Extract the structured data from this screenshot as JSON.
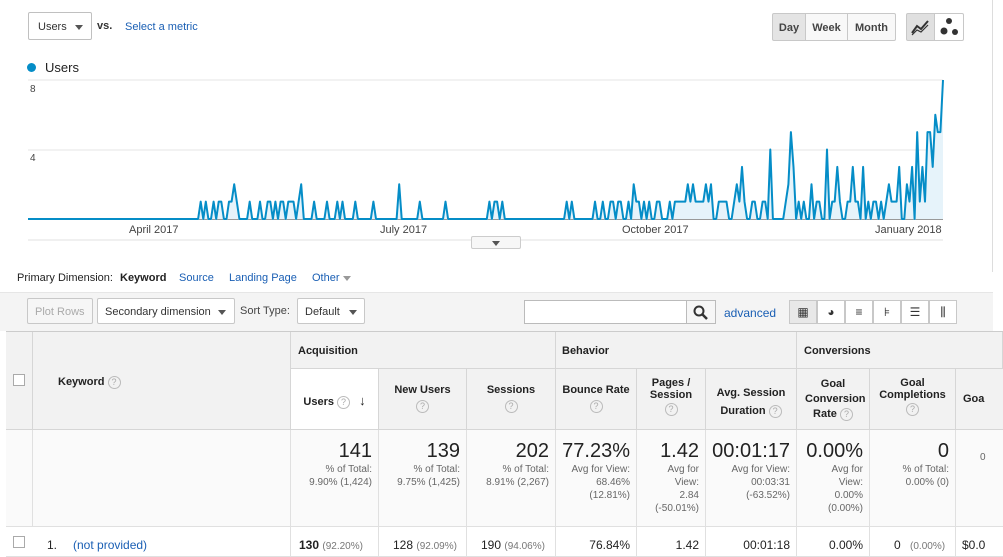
{
  "metric": {
    "selected": "Users",
    "vs": "vs.",
    "select_metric": "Select a metric"
  },
  "periods": [
    "Day",
    "Week",
    "Month"
  ],
  "chart_data": {
    "type": "line",
    "title": "",
    "series": [
      {
        "name": "Users",
        "color": "#058dc7",
        "values": [
          0,
          0,
          0,
          0,
          0,
          0,
          0,
          0,
          0,
          0,
          0,
          0,
          0,
          0,
          0,
          0,
          0,
          0,
          0,
          0,
          0,
          0,
          0,
          0,
          0,
          0,
          0,
          0,
          0,
          0,
          0,
          0,
          0,
          0,
          0,
          0,
          0,
          0,
          0,
          0,
          0,
          0,
          0,
          0,
          0,
          0,
          0,
          0,
          0,
          0,
          0,
          0,
          0,
          0,
          0,
          0,
          0,
          0,
          0,
          0,
          0,
          0,
          0,
          0,
          0,
          0,
          0,
          1,
          0,
          1,
          0,
          0,
          1,
          0,
          1,
          1,
          0,
          0,
          1,
          1,
          2,
          1,
          0,
          0,
          0,
          0,
          1,
          0,
          0,
          0,
          1,
          0,
          0,
          1,
          1,
          0,
          1,
          0,
          1,
          1,
          0,
          1,
          1,
          1,
          0,
          1,
          2,
          0,
          0,
          0,
          0,
          1,
          0,
          0,
          0,
          0,
          1,
          0,
          0,
          0,
          1,
          0,
          1,
          0,
          0,
          0,
          0,
          1,
          0,
          0,
          0,
          0,
          0,
          0,
          1,
          0,
          0,
          0,
          0,
          0,
          0,
          0,
          0,
          0,
          2,
          0,
          0,
          0,
          0,
          0,
          0,
          0,
          1,
          0,
          0,
          0,
          0,
          0,
          0,
          0,
          0,
          0,
          1,
          0,
          0,
          0,
          0,
          0,
          0,
          0,
          0,
          0,
          0,
          0,
          0,
          0,
          0,
          0,
          0,
          1,
          0,
          1,
          1,
          0,
          1,
          0,
          0,
          0,
          0,
          0,
          0,
          0,
          0,
          0,
          0,
          0,
          0,
          0,
          0,
          0,
          0,
          0,
          0,
          0,
          0,
          0,
          0,
          0,
          0,
          1,
          0,
          1,
          0,
          0,
          0,
          0,
          0,
          0,
          0,
          0,
          1,
          0,
          0,
          1,
          0,
          0,
          1,
          1,
          0,
          1,
          1,
          0,
          0,
          1,
          0,
          2,
          1,
          1,
          0,
          1,
          0,
          1,
          0,
          0,
          1,
          1,
          0,
          0,
          0,
          1,
          0,
          1,
          1,
          1,
          1,
          1,
          2,
          1,
          2,
          1,
          1,
          1,
          1,
          2,
          1,
          2,
          0,
          0,
          1,
          1,
          1,
          1,
          0,
          0,
          1,
          2,
          1,
          3,
          1,
          0,
          0,
          1,
          1,
          0,
          0,
          1,
          1,
          0,
          4,
          0,
          0,
          0,
          0,
          0,
          1,
          2,
          5,
          3,
          0,
          1,
          0,
          1,
          0,
          0,
          2,
          0,
          1,
          1,
          0,
          0,
          4,
          0,
          1,
          1,
          3,
          1,
          0,
          0,
          1,
          1,
          3,
          1,
          1,
          0,
          3,
          0,
          1,
          0,
          1,
          1,
          0,
          1,
          0,
          1,
          2,
          1,
          1,
          1,
          3,
          0,
          0,
          2,
          1,
          3,
          0,
          5,
          1,
          3,
          1,
          5,
          5,
          3,
          6,
          5,
          5,
          8
        ]
      }
    ],
    "x_start": "2017-02-10",
    "x_end": "2018-02-07",
    "xticks": [
      "April 2017",
      "July 2017",
      "October 2017",
      "January 2018"
    ],
    "yticks": [
      4,
      8
    ],
    "ylim": [
      0,
      8
    ]
  },
  "primary_dimension": {
    "label": "Primary Dimension:",
    "active": "Keyword",
    "options": [
      "Source",
      "Landing Page",
      "Other"
    ]
  },
  "toolbar": {
    "plot_rows": "Plot Rows",
    "secondary": "Secondary dimension",
    "sort_label": "Sort Type:",
    "sort_value": "Default",
    "advanced": "advanced",
    "search_placeholder": ""
  },
  "table": {
    "groups": [
      "Acquisition",
      "Behavior",
      "Conversions"
    ],
    "dimension_header": "Keyword",
    "columns": [
      "Users",
      "New Users",
      "Sessions",
      "Bounce Rate",
      "Pages / Session",
      "Avg. Session Duration",
      "Goal Conversion Rate",
      "Goal Completions",
      "Goa"
    ],
    "totals": [
      {
        "value": "141",
        "l1": "% of Total:",
        "l2": "9.90% (1,424)"
      },
      {
        "value": "139",
        "l1": "% of Total:",
        "l2": "9.75% (1,425)"
      },
      {
        "value": "202",
        "l1": "% of Total:",
        "l2": "8.91% (2,267)"
      },
      {
        "value": "77.23%",
        "l1": "Avg for View:",
        "l2": "68.46%",
        "l3": "(12.81%)"
      },
      {
        "value": "1.42",
        "l1": "Avg for",
        "l2": "View:",
        "l3": "2.84",
        "l4": "(-50.01%)"
      },
      {
        "value": "00:01:17",
        "l1": "Avg for View:",
        "l2": "00:03:31",
        "l3": "(-63.52%)"
      },
      {
        "value": "0.00%",
        "l1": "Avg for",
        "l2": "View:",
        "l3": "0.00%",
        "l4": "(0.00%)"
      },
      {
        "value": "0",
        "l1": "% of Total:",
        "l2": "0.00% (0)"
      },
      {
        "value": "",
        "l1": "0"
      }
    ],
    "row": {
      "index": "1.",
      "keyword": "(not provided)",
      "users": "130",
      "users_pct": "(92.20%)",
      "new_users": "128",
      "new_users_pct": "(92.09%)",
      "sessions": "190",
      "sessions_pct": "(94.06%)",
      "bounce": "76.84%",
      "pps": "1.42",
      "duration": "00:01:18",
      "conv": "0.00%",
      "completions": "0",
      "completions_pct": "(0.00%)",
      "value": "$0.0"
    }
  }
}
